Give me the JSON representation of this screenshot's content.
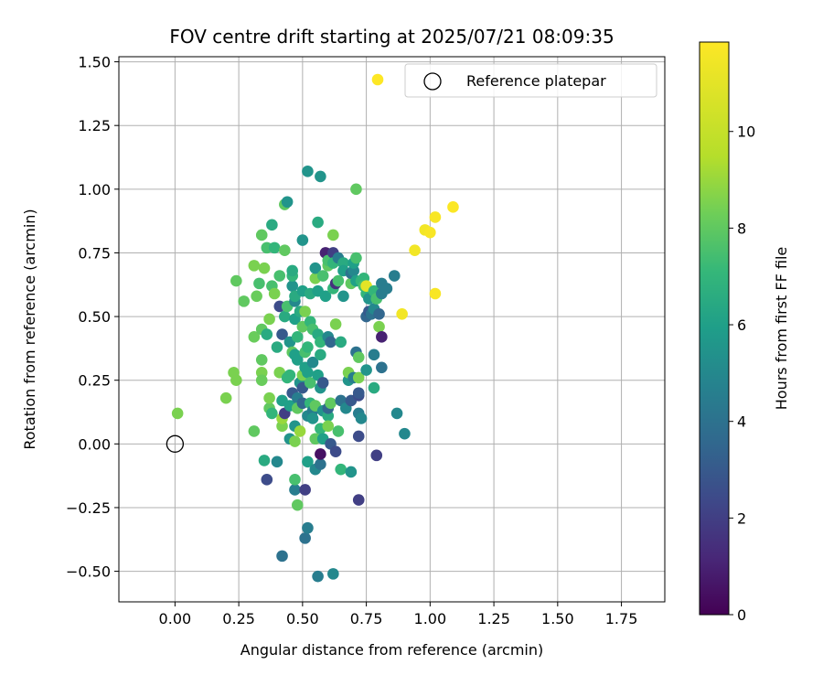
{
  "chart_data": {
    "type": "scatter",
    "title": "FOV centre drift starting at 2025/07/21 08:09:35",
    "xlabel": "Angular distance from reference (arcmin)",
    "ylabel": "Rotation from reference (arcmin)",
    "xlim": [
      -0.22,
      1.92
    ],
    "ylim": [
      -0.62,
      1.52
    ],
    "x_ticks": [
      0.0,
      0.25,
      0.5,
      0.75,
      1.0,
      1.25,
      1.5,
      1.75
    ],
    "x_tick_labels": [
      "0.00",
      "0.25",
      "0.50",
      "0.75",
      "1.00",
      "1.25",
      "1.50",
      "1.75"
    ],
    "y_ticks": [
      -0.5,
      -0.25,
      0.0,
      0.25,
      0.5,
      0.75,
      1.0,
      1.25,
      1.5
    ],
    "y_tick_labels": [
      "−0.50",
      "−0.25",
      "0.00",
      "0.25",
      "0.50",
      "0.75",
      "1.00",
      "1.25",
      "1.50"
    ],
    "grid": true,
    "legend_position": "top-right",
    "legend": {
      "reference_label": "Reference platepar"
    },
    "reference_point": {
      "x": 0.0,
      "y": 0.0
    },
    "colorbar": {
      "label": "Hours from first FF file",
      "colormap": "viridis",
      "range": [
        0,
        11.85
      ],
      "ticks": [
        0,
        2,
        4,
        6,
        8,
        10
      ],
      "tick_labels": [
        "0",
        "2",
        "4",
        "6",
        "8",
        "10"
      ]
    },
    "points": [
      [
        0.01,
        0.12,
        8.5
      ],
      [
        0.2,
        0.18,
        8.5
      ],
      [
        0.23,
        0.28,
        8.5
      ],
      [
        0.24,
        0.25,
        8.5
      ],
      [
        0.24,
        0.64,
        8.0
      ],
      [
        0.27,
        0.56,
        8.0
      ],
      [
        0.31,
        0.05,
        8.0
      ],
      [
        0.31,
        0.42,
        8.2
      ],
      [
        0.31,
        0.7,
        8.5
      ],
      [
        0.32,
        0.58,
        8.2
      ],
      [
        0.33,
        0.63,
        7.5
      ],
      [
        0.34,
        0.33,
        8.0
      ],
      [
        0.34,
        0.28,
        8.5
      ],
      [
        0.34,
        0.25,
        8.2
      ],
      [
        0.34,
        0.45,
        8.0
      ],
      [
        0.34,
        0.82,
        8.0
      ],
      [
        0.35,
        0.69,
        8.5
      ],
      [
        0.35,
        -0.065,
        6.5
      ],
      [
        0.36,
        -0.14,
        2.5
      ],
      [
        0.36,
        0.43,
        6.5
      ],
      [
        0.36,
        0.77,
        7.5
      ],
      [
        0.37,
        0.49,
        8.5
      ],
      [
        0.37,
        0.14,
        8.0
      ],
      [
        0.37,
        0.18,
        8.5
      ],
      [
        0.38,
        0.86,
        6.5
      ],
      [
        0.38,
        0.62,
        7.5
      ],
      [
        0.38,
        0.12,
        7.0
      ],
      [
        0.39,
        0.77,
        7.0
      ],
      [
        0.39,
        0.59,
        8.5
      ],
      [
        0.4,
        -0.07,
        5.0
      ],
      [
        0.4,
        0.38,
        6.5
      ],
      [
        0.41,
        0.28,
        8.5
      ],
      [
        0.41,
        0.66,
        7.5
      ],
      [
        0.41,
        0.54,
        2.5
      ],
      [
        0.42,
        0.07,
        8.5
      ],
      [
        0.42,
        0.1,
        9.0
      ],
      [
        0.42,
        0.17,
        6.0
      ],
      [
        0.42,
        -0.44,
        4.0
      ],
      [
        0.42,
        0.43,
        3.0
      ],
      [
        0.43,
        0.94,
        8.0
      ],
      [
        0.43,
        0.5,
        6.5
      ],
      [
        0.43,
        0.76,
        8.0
      ],
      [
        0.43,
        0.12,
        2.0
      ],
      [
        0.44,
        0.54,
        7.5
      ],
      [
        0.44,
        0.26,
        7.0
      ],
      [
        0.44,
        0.95,
        5.5
      ],
      [
        0.45,
        0.02,
        5.5
      ],
      [
        0.45,
        0.27,
        7.0
      ],
      [
        0.45,
        0.4,
        5.5
      ],
      [
        0.45,
        0.15,
        6.0
      ],
      [
        0.46,
        0.36,
        8.0
      ],
      [
        0.46,
        0.62,
        5.5
      ],
      [
        0.46,
        0.66,
        7.0
      ],
      [
        0.46,
        0.68,
        6.5
      ],
      [
        0.46,
        0.2,
        3.0
      ],
      [
        0.47,
        -0.18,
        4.5
      ],
      [
        0.47,
        0.01,
        8.5
      ],
      [
        0.47,
        0.35,
        6.0
      ],
      [
        0.47,
        0.07,
        5.5
      ],
      [
        0.47,
        0.49,
        6.0
      ],
      [
        0.47,
        0.56,
        5.0
      ],
      [
        0.47,
        0.58,
        6.5
      ],
      [
        0.47,
        -0.14,
        7.5
      ],
      [
        0.48,
        -0.24,
        8.0
      ],
      [
        0.48,
        0.33,
        6.0
      ],
      [
        0.48,
        0.18,
        4.5
      ],
      [
        0.48,
        0.42,
        7.0
      ],
      [
        0.48,
        0.14,
        8.0
      ],
      [
        0.49,
        0.05,
        9.0
      ],
      [
        0.49,
        0.24,
        5.5
      ],
      [
        0.49,
        0.52,
        6.5
      ],
      [
        0.5,
        0.46,
        8.0
      ],
      [
        0.5,
        0.6,
        6.0
      ],
      [
        0.5,
        0.16,
        3.5
      ],
      [
        0.5,
        0.27,
        8.5
      ],
      [
        0.5,
        0.8,
        5.5
      ],
      [
        0.5,
        0.22,
        3.0
      ],
      [
        0.51,
        -0.18,
        2.0
      ],
      [
        0.51,
        0.52,
        8.5
      ],
      [
        0.51,
        -0.37,
        4.0
      ],
      [
        0.51,
        0.3,
        6.0
      ],
      [
        0.51,
        0.36,
        7.5
      ],
      [
        0.52,
        -0.07,
        6.0
      ],
      [
        0.52,
        0.11,
        5.0
      ],
      [
        0.52,
        -0.33,
        4.5
      ],
      [
        0.52,
        1.07,
        5.5
      ],
      [
        0.52,
        0.38,
        7.0
      ],
      [
        0.52,
        0.28,
        6.0
      ],
      [
        0.53,
        0.59,
        6.5
      ],
      [
        0.53,
        0.16,
        7.0
      ],
      [
        0.53,
        0.48,
        7.0
      ],
      [
        0.53,
        0.24,
        7.5
      ],
      [
        0.54,
        0.32,
        5.0
      ],
      [
        0.54,
        0.45,
        7.5
      ],
      [
        0.54,
        0.13,
        4.5
      ],
      [
        0.54,
        0.1,
        5.5
      ],
      [
        0.55,
        -0.1,
        5.0
      ],
      [
        0.55,
        0.65,
        8.5
      ],
      [
        0.55,
        0.69,
        5.5
      ],
      [
        0.55,
        0.02,
        8.0
      ],
      [
        0.55,
        0.15,
        8.0
      ],
      [
        0.56,
        0.87,
        6.5
      ],
      [
        0.56,
        -0.52,
        4.5
      ],
      [
        0.56,
        0.43,
        6.5
      ],
      [
        0.56,
        0.6,
        6.0
      ],
      [
        0.56,
        0.27,
        6.0
      ],
      [
        0.57,
        0.06,
        7.0
      ],
      [
        0.57,
        0.22,
        5.5
      ],
      [
        0.57,
        0.4,
        7.0
      ],
      [
        0.57,
        1.05,
        5.5
      ],
      [
        0.57,
        0.35,
        6.5
      ],
      [
        0.57,
        -0.08,
        4.0
      ],
      [
        0.57,
        -0.04,
        0.5
      ],
      [
        0.58,
        0.66,
        7.5
      ],
      [
        0.58,
        0.02,
        6.0
      ],
      [
        0.58,
        0.13,
        5.5
      ],
      [
        0.58,
        0.24,
        3.0
      ],
      [
        0.59,
        0.75,
        1.0
      ],
      [
        0.59,
        0.58,
        6.0
      ],
      [
        0.6,
        0.11,
        6.5
      ],
      [
        0.6,
        0.14,
        3.5
      ],
      [
        0.6,
        0.7,
        8.0
      ],
      [
        0.6,
        0.07,
        8.5
      ],
      [
        0.6,
        0.42,
        5.0
      ],
      [
        0.6,
        0.72,
        7.5
      ],
      [
        0.61,
        0.0,
        3.0
      ],
      [
        0.61,
        0.4,
        3.5
      ],
      [
        0.61,
        0.16,
        8.0
      ],
      [
        0.62,
        0.82,
        8.5
      ],
      [
        0.62,
        0.75,
        2.0
      ],
      [
        0.62,
        0.71,
        7.0
      ],
      [
        0.62,
        -0.51,
        5.0
      ],
      [
        0.62,
        0.61,
        7.0
      ],
      [
        0.63,
        -0.03,
        2.5
      ],
      [
        0.63,
        0.47,
        8.5
      ],
      [
        0.63,
        0.63,
        1.5
      ],
      [
        0.64,
        0.73,
        4.5
      ],
      [
        0.64,
        0.64,
        7.5
      ],
      [
        0.64,
        0.05,
        7.5
      ],
      [
        0.65,
        0.17,
        4.0
      ],
      [
        0.65,
        0.4,
        6.5
      ],
      [
        0.65,
        -0.1,
        7.0
      ],
      [
        0.66,
        0.71,
        6.5
      ],
      [
        0.66,
        0.58,
        5.5
      ],
      [
        0.66,
        0.68,
        6.0
      ],
      [
        0.67,
        0.14,
        5.0
      ],
      [
        0.68,
        0.25,
        5.5
      ],
      [
        0.68,
        0.28,
        8.5
      ],
      [
        0.69,
        0.17,
        3.0
      ],
      [
        0.69,
        -0.11,
        5.5
      ],
      [
        0.69,
        0.63,
        8.0
      ],
      [
        0.69,
        0.67,
        4.0
      ],
      [
        0.7,
        0.68,
        5.0
      ],
      [
        0.7,
        0.71,
        6.0
      ],
      [
        0.7,
        0.26,
        4.5
      ],
      [
        0.71,
        0.64,
        6.0
      ],
      [
        0.71,
        0.36,
        4.0
      ],
      [
        0.71,
        0.73,
        7.5
      ],
      [
        0.71,
        1.0,
        8.0
      ],
      [
        0.72,
        0.26,
        8.5
      ],
      [
        0.72,
        0.19,
        2.5
      ],
      [
        0.72,
        -0.22,
        2.0
      ],
      [
        0.72,
        0.12,
        4.5
      ],
      [
        0.72,
        0.03,
        2.5
      ],
      [
        0.72,
        0.34,
        8.0
      ],
      [
        0.72,
        0.2,
        3.0
      ],
      [
        0.73,
        0.1,
        5.0
      ],
      [
        0.73,
        0.64,
        7.0
      ],
      [
        0.74,
        0.65,
        7.0
      ],
      [
        0.74,
        0.62,
        7.5
      ],
      [
        0.75,
        0.5,
        3.5
      ],
      [
        0.75,
        0.59,
        7.0
      ],
      [
        0.75,
        0.29,
        5.5
      ],
      [
        0.75,
        0.62,
        11.0
      ],
      [
        0.76,
        0.52,
        3.0
      ],
      [
        0.76,
        0.57,
        5.5
      ],
      [
        0.77,
        0.51,
        4.0
      ],
      [
        0.78,
        0.53,
        5.0
      ],
      [
        0.78,
        0.35,
        4.5
      ],
      [
        0.78,
        0.6,
        7.0
      ],
      [
        0.78,
        0.22,
        6.5
      ],
      [
        0.79,
        0.57,
        7.5
      ],
      [
        0.79,
        -0.045,
        2.0
      ],
      [
        0.8,
        0.46,
        8.5
      ],
      [
        0.8,
        0.51,
        3.5
      ],
      [
        0.81,
        0.42,
        1.0
      ],
      [
        0.81,
        0.63,
        4.5
      ],
      [
        0.81,
        0.3,
        4.0
      ],
      [
        0.81,
        0.59,
        4.5
      ],
      [
        0.83,
        0.61,
        4.5
      ],
      [
        0.86,
        0.66,
        4.5
      ],
      [
        0.87,
        0.12,
        5.0
      ],
      [
        0.89,
        0.51,
        11.5
      ],
      [
        0.9,
        0.04,
        5.0
      ],
      [
        0.94,
        0.76,
        11.5
      ],
      [
        0.98,
        0.84,
        11.5
      ],
      [
        1.0,
        0.83,
        11.7
      ],
      [
        1.02,
        0.89,
        11.7
      ],
      [
        1.02,
        0.59,
        11.7
      ],
      [
        1.09,
        0.93,
        11.8
      ]
    ]
  }
}
